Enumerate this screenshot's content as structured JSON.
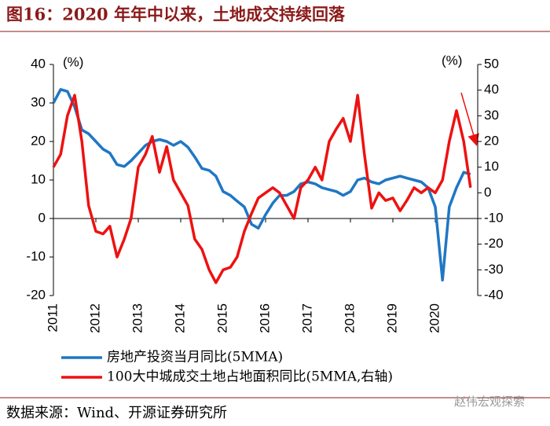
{
  "chart_data": {
    "type": "line",
    "title": "图16：2020 年年中以来，土地成交持续回落",
    "y_label": "(%)",
    "y2_label": "(%)",
    "source": "数据来源：Wind、开源证券研究所",
    "watermark": "赵伟宏观探索",
    "x": [
      2011.0,
      2011.17,
      2011.33,
      2011.5,
      2011.67,
      2011.83,
      2012.0,
      2012.17,
      2012.33,
      2012.5,
      2012.67,
      2012.83,
      2013.0,
      2013.17,
      2013.33,
      2013.5,
      2013.67,
      2013.83,
      2014.0,
      2014.17,
      2014.33,
      2014.5,
      2014.67,
      2014.83,
      2015.0,
      2015.17,
      2015.33,
      2015.5,
      2015.67,
      2015.83,
      2016.0,
      2016.17,
      2016.33,
      2016.5,
      2016.67,
      2016.83,
      2017.0,
      2017.17,
      2017.33,
      2017.5,
      2017.67,
      2017.83,
      2018.0,
      2018.17,
      2018.33,
      2018.5,
      2018.67,
      2018.83,
      2019.0,
      2019.17,
      2019.33,
      2019.5,
      2019.67,
      2019.83,
      2020.0,
      2020.17,
      2020.33,
      2020.5,
      2020.67,
      2020.83
    ],
    "xlim": [
      2011,
      2021
    ],
    "xticks": [
      2011,
      2012,
      2013,
      2014,
      2015,
      2016,
      2017,
      2018,
      2019,
      2020
    ],
    "ylim": [
      -20,
      40
    ],
    "yticks": [
      -20,
      -10,
      0,
      10,
      20,
      30,
      40
    ],
    "y2lim": [
      -40,
      50
    ],
    "y2ticks": [
      -40,
      -30,
      -20,
      -10,
      0,
      10,
      20,
      30,
      40,
      50
    ],
    "series": [
      {
        "name": "房地产投资当月同比(5MMA)",
        "color": "#1f77c4",
        "values": [
          30,
          33.5,
          33,
          29,
          23,
          22,
          20,
          18,
          17,
          14,
          13.5,
          15,
          17,
          19,
          20,
          20.5,
          20,
          19,
          20,
          18.5,
          16,
          13,
          12.5,
          11,
          7,
          6,
          4.5,
          3,
          -1.5,
          -2.5,
          1,
          4,
          6,
          6,
          7,
          9,
          9.5,
          9,
          8,
          7.5,
          7,
          6,
          7,
          10,
          10.5,
          9.5,
          9,
          10,
          10.5,
          11,
          10.5,
          10,
          9.5,
          8,
          3,
          -16,
          3,
          8,
          12,
          11.5
        ]
      },
      {
        "name": "100大中城成交土地占地面积同比(5MMA,右轴)",
        "color": "#ee1111",
        "axis": "y2",
        "values": [
          10,
          15,
          30,
          38,
          20,
          -5,
          -15,
          -16,
          -13,
          -25,
          -18,
          -10,
          10,
          15,
          22,
          8,
          18,
          5,
          0,
          -5,
          -18,
          -22,
          -30,
          -35,
          -30,
          -29,
          -25,
          -15,
          -8,
          -2,
          0,
          2,
          0,
          -5,
          -10,
          2,
          5,
          10,
          5,
          20,
          25,
          29,
          20,
          38,
          15,
          -6,
          0,
          -3,
          -2,
          -7,
          -3,
          2,
          0,
          2,
          0,
          5,
          20,
          32,
          20,
          2
        ]
      }
    ]
  }
}
